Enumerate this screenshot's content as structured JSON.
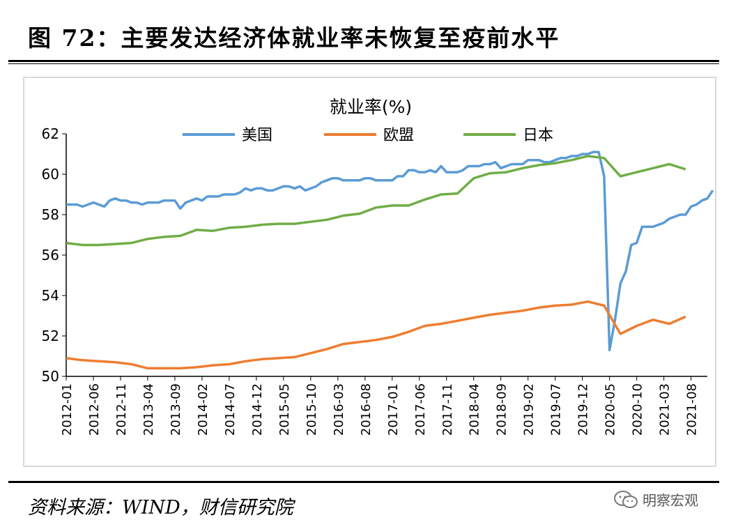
{
  "figure": {
    "title": "图 72：主要发达经济体就业率未恢复至疫前水平",
    "source": "资料来源：WIND，财信研究院",
    "watermark": "明察宏观"
  },
  "chart_data": {
    "type": "line",
    "title": "就业率(%)",
    "xlabel": "",
    "ylabel": "",
    "ylim": [
      50,
      62
    ],
    "yticks": [
      50,
      52,
      54,
      56,
      58,
      60,
      62
    ],
    "xlim": [
      "2012-01",
      "2021-11"
    ],
    "xticks": [
      "2012-01",
      "2012-06",
      "2012-11",
      "2013-04",
      "2013-09",
      "2014-02",
      "2014-07",
      "2014-12",
      "2015-05",
      "2015-10",
      "2016-03",
      "2016-08",
      "2017-01",
      "2017-06",
      "2017-11",
      "2018-04",
      "2018-09",
      "2019-02",
      "2019-07",
      "2019-12",
      "2020-05",
      "2020-10",
      "2021-03",
      "2021-08"
    ],
    "grid": false,
    "legend_position": "top",
    "series": [
      {
        "name": "美国",
        "color": "#5b9bd5",
        "points": [
          [
            "2012-01",
            58.5
          ],
          [
            "2012-02",
            58.5
          ],
          [
            "2012-03",
            58.5
          ],
          [
            "2012-04",
            58.4
          ],
          [
            "2012-05",
            58.5
          ],
          [
            "2012-06",
            58.6
          ],
          [
            "2012-07",
            58.5
          ],
          [
            "2012-08",
            58.4
          ],
          [
            "2012-09",
            58.7
          ],
          [
            "2012-10",
            58.8
          ],
          [
            "2012-11",
            58.7
          ],
          [
            "2012-12",
            58.7
          ],
          [
            "2013-01",
            58.6
          ],
          [
            "2013-02",
            58.6
          ],
          [
            "2013-03",
            58.5
          ],
          [
            "2013-04",
            58.6
          ],
          [
            "2013-05",
            58.6
          ],
          [
            "2013-06",
            58.6
          ],
          [
            "2013-07",
            58.7
          ],
          [
            "2013-08",
            58.7
          ],
          [
            "2013-09",
            58.7
          ],
          [
            "2013-10",
            58.3
          ],
          [
            "2013-11",
            58.6
          ],
          [
            "2013-12",
            58.7
          ],
          [
            "2014-01",
            58.8
          ],
          [
            "2014-02",
            58.7
          ],
          [
            "2014-03",
            58.9
          ],
          [
            "2014-04",
            58.9
          ],
          [
            "2014-05",
            58.9
          ],
          [
            "2014-06",
            59.0
          ],
          [
            "2014-07",
            59.0
          ],
          [
            "2014-08",
            59.0
          ],
          [
            "2014-09",
            59.1
          ],
          [
            "2014-10",
            59.3
          ],
          [
            "2014-11",
            59.2
          ],
          [
            "2014-12",
            59.3
          ],
          [
            "2015-01",
            59.3
          ],
          [
            "2015-02",
            59.2
          ],
          [
            "2015-03",
            59.2
          ],
          [
            "2015-04",
            59.3
          ],
          [
            "2015-05",
            59.4
          ],
          [
            "2015-06",
            59.4
          ],
          [
            "2015-07",
            59.3
          ],
          [
            "2015-08",
            59.4
          ],
          [
            "2015-09",
            59.2
          ],
          [
            "2015-10",
            59.3
          ],
          [
            "2015-11",
            59.4
          ],
          [
            "2015-12",
            59.6
          ],
          [
            "2016-01",
            59.7
          ],
          [
            "2016-02",
            59.8
          ],
          [
            "2016-03",
            59.8
          ],
          [
            "2016-04",
            59.7
          ],
          [
            "2016-05",
            59.7
          ],
          [
            "2016-06",
            59.7
          ],
          [
            "2016-07",
            59.7
          ],
          [
            "2016-08",
            59.8
          ],
          [
            "2016-09",
            59.8
          ],
          [
            "2016-10",
            59.7
          ],
          [
            "2016-11",
            59.7
          ],
          [
            "2016-12",
            59.7
          ],
          [
            "2017-01",
            59.7
          ],
          [
            "2017-02",
            59.9
          ],
          [
            "2017-03",
            59.9
          ],
          [
            "2017-04",
            60.2
          ],
          [
            "2017-05",
            60.2
          ],
          [
            "2017-06",
            60.1
          ],
          [
            "2017-07",
            60.1
          ],
          [
            "2017-08",
            60.2
          ],
          [
            "2017-09",
            60.1
          ],
          [
            "2017-10",
            60.4
          ],
          [
            "2017-11",
            60.1
          ],
          [
            "2017-12",
            60.1
          ],
          [
            "2018-01",
            60.1
          ],
          [
            "2018-02",
            60.2
          ],
          [
            "2018-03",
            60.4
          ],
          [
            "2018-04",
            60.4
          ],
          [
            "2018-05",
            60.4
          ],
          [
            "2018-06",
            60.5
          ],
          [
            "2018-07",
            60.5
          ],
          [
            "2018-08",
            60.6
          ],
          [
            "2018-09",
            60.3
          ],
          [
            "2018-10",
            60.4
          ],
          [
            "2018-11",
            60.5
          ],
          [
            "2018-12",
            60.5
          ],
          [
            "2019-01",
            60.5
          ],
          [
            "2019-02",
            60.7
          ],
          [
            "2019-03",
            60.7
          ],
          [
            "2019-04",
            60.7
          ],
          [
            "2019-05",
            60.6
          ],
          [
            "2019-06",
            60.6
          ],
          [
            "2019-07",
            60.7
          ],
          [
            "2019-08",
            60.8
          ],
          [
            "2019-09",
            60.8
          ],
          [
            "2019-10",
            60.9
          ],
          [
            "2019-11",
            60.9
          ],
          [
            "2019-12",
            61.0
          ],
          [
            "2020-01",
            61.0
          ],
          [
            "2020-02",
            61.1
          ],
          [
            "2020-03",
            61.1
          ],
          [
            "2020-04",
            59.9
          ],
          [
            "2020-05",
            51.3
          ],
          [
            "2020-06",
            52.8
          ],
          [
            "2020-07",
            54.6
          ],
          [
            "2020-08",
            55.2
          ],
          [
            "2020-09",
            56.5
          ],
          [
            "2020-10",
            56.6
          ],
          [
            "2020-11",
            57.4
          ],
          [
            "2020-12",
            57.4
          ],
          [
            "2021-01",
            57.4
          ],
          [
            "2021-02",
            57.5
          ],
          [
            "2021-03",
            57.6
          ],
          [
            "2021-04",
            57.8
          ],
          [
            "2021-05",
            57.9
          ],
          [
            "2021-06",
            58.0
          ],
          [
            "2021-07",
            58.0
          ],
          [
            "2021-08",
            58.4
          ],
          [
            "2021-09",
            58.5
          ],
          [
            "2021-10",
            58.7
          ],
          [
            "2021-11",
            58.8
          ],
          [
            "2021-12",
            59.2
          ]
        ]
      },
      {
        "name": "欧盟",
        "color": "#ed7d31",
        "points": [
          [
            "2012-01",
            50.9
          ],
          [
            "2012-04",
            50.8
          ],
          [
            "2012-07",
            50.75
          ],
          [
            "2012-10",
            50.7
          ],
          [
            "2013-01",
            50.6
          ],
          [
            "2013-04",
            50.4
          ],
          [
            "2013-07",
            50.4
          ],
          [
            "2013-10",
            50.4
          ],
          [
            "2014-01",
            50.45
          ],
          [
            "2014-04",
            50.55
          ],
          [
            "2014-07",
            50.6
          ],
          [
            "2014-10",
            50.75
          ],
          [
            "2015-01",
            50.85
          ],
          [
            "2015-04",
            50.9
          ],
          [
            "2015-07",
            50.95
          ],
          [
            "2015-10",
            51.15
          ],
          [
            "2016-01",
            51.35
          ],
          [
            "2016-04",
            51.6
          ],
          [
            "2016-07",
            51.7
          ],
          [
            "2016-10",
            51.8
          ],
          [
            "2017-01",
            51.95
          ],
          [
            "2017-04",
            52.2
          ],
          [
            "2017-07",
            52.5
          ],
          [
            "2017-10",
            52.6
          ],
          [
            "2018-01",
            52.75
          ],
          [
            "2018-04",
            52.9
          ],
          [
            "2018-07",
            53.05
          ],
          [
            "2018-10",
            53.15
          ],
          [
            "2019-01",
            53.25
          ],
          [
            "2019-04",
            53.4
          ],
          [
            "2019-07",
            53.5
          ],
          [
            "2019-10",
            53.55
          ],
          [
            "2020-01",
            53.7
          ],
          [
            "2020-04",
            53.5
          ],
          [
            "2020-07",
            52.1
          ],
          [
            "2020-10",
            52.5
          ],
          [
            "2021-01",
            52.8
          ],
          [
            "2021-04",
            52.6
          ],
          [
            "2021-07",
            52.95
          ]
        ]
      },
      {
        "name": "日本",
        "color": "#70ad47",
        "points": [
          [
            "2012-01",
            56.6
          ],
          [
            "2012-04",
            56.5
          ],
          [
            "2012-07",
            56.5
          ],
          [
            "2012-10",
            56.55
          ],
          [
            "2013-01",
            56.6
          ],
          [
            "2013-04",
            56.8
          ],
          [
            "2013-07",
            56.9
          ],
          [
            "2013-10",
            56.95
          ],
          [
            "2014-01",
            57.25
          ],
          [
            "2014-04",
            57.2
          ],
          [
            "2014-07",
            57.35
          ],
          [
            "2014-10",
            57.4
          ],
          [
            "2015-01",
            57.5
          ],
          [
            "2015-04",
            57.55
          ],
          [
            "2015-07",
            57.55
          ],
          [
            "2015-10",
            57.65
          ],
          [
            "2016-01",
            57.75
          ],
          [
            "2016-04",
            57.95
          ],
          [
            "2016-07",
            58.05
          ],
          [
            "2016-10",
            58.35
          ],
          [
            "2017-01",
            58.45
          ],
          [
            "2017-04",
            58.45
          ],
          [
            "2017-07",
            58.75
          ],
          [
            "2017-10",
            59.0
          ],
          [
            "2018-01",
            59.05
          ],
          [
            "2018-04",
            59.8
          ],
          [
            "2018-07",
            60.05
          ],
          [
            "2018-10",
            60.1
          ],
          [
            "2019-01",
            60.3
          ],
          [
            "2019-04",
            60.45
          ],
          [
            "2019-07",
            60.55
          ],
          [
            "2019-10",
            60.7
          ],
          [
            "2020-01",
            60.9
          ],
          [
            "2020-04",
            60.8
          ],
          [
            "2020-07",
            59.9
          ],
          [
            "2020-10",
            60.1
          ],
          [
            "2021-01",
            60.3
          ],
          [
            "2021-04",
            60.5
          ],
          [
            "2021-07",
            60.25
          ]
        ]
      }
    ]
  }
}
